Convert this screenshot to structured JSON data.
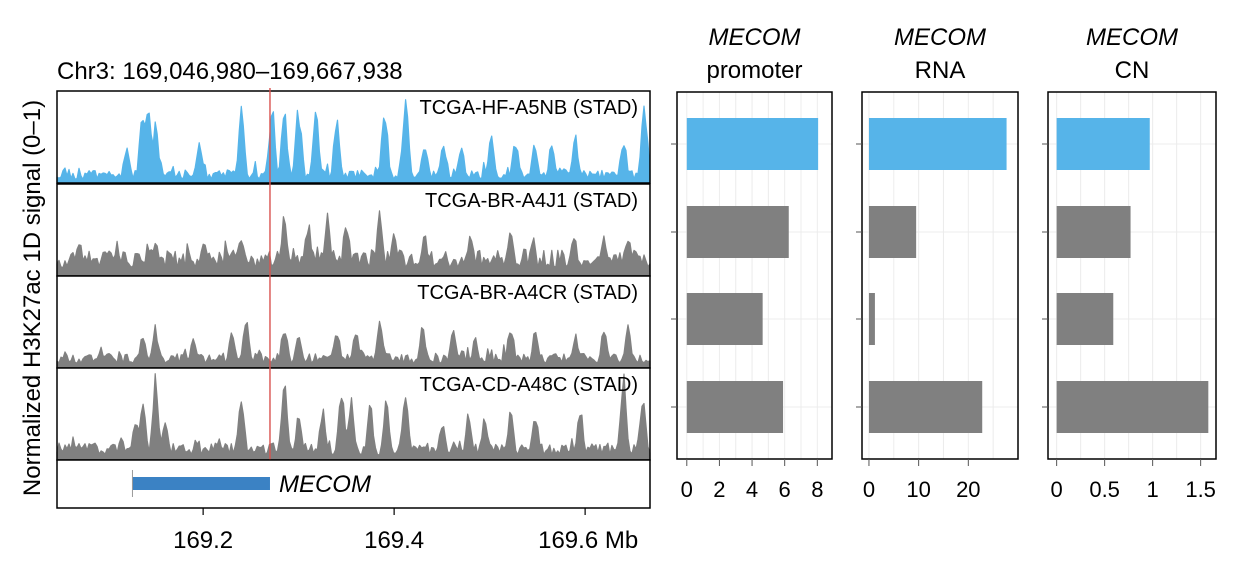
{
  "chart_data": [
    {
      "type": "area",
      "title": "Chr3: 169,046,980–169,667,938",
      "ylabel": "Normalized H3K27ac 1D signal (0–1)",
      "x_unit": "Mb",
      "xlim": [
        169.04698,
        169.667938
      ],
      "ylim": [
        0,
        1
      ],
      "x_ticks": [
        169.2,
        169.4,
        169.6
      ],
      "x_tick_labels": [
        "169.2",
        "169.4",
        "169.6 Mb"
      ],
      "marker_line_x": 169.27,
      "tracks": [
        {
          "name": "TCGA-HF-A5NB (STAD)",
          "color": "#56b4e9",
          "seed": 11,
          "base": 0.12,
          "peaks": [
            [
              169.137,
              0.95
            ],
            [
              169.143,
              0.9
            ],
            [
              169.15,
              0.75
            ],
            [
              169.12,
              0.5
            ],
            [
              169.196,
              0.55
            ],
            [
              169.24,
              0.88
            ],
            [
              169.272,
              0.92
            ],
            [
              169.285,
              0.9
            ],
            [
              169.3,
              0.95
            ],
            [
              169.318,
              0.92
            ],
            [
              169.34,
              0.8
            ],
            [
              169.39,
              0.98
            ],
            [
              169.412,
              0.95
            ],
            [
              169.432,
              0.55
            ],
            [
              169.452,
              0.5
            ],
            [
              169.47,
              0.48
            ],
            [
              169.502,
              0.55
            ],
            [
              169.527,
              0.5
            ],
            [
              169.547,
              0.45
            ],
            [
              169.565,
              0.48
            ],
            [
              169.59,
              0.55
            ],
            [
              169.64,
              0.55
            ],
            [
              169.662,
              1.0
            ]
          ]
        },
        {
          "name": "TCGA-BR-A4J1 (STAD)",
          "color": "#808080",
          "seed": 23,
          "base": 0.25,
          "peaks": [
            [
              169.07,
              0.45
            ],
            [
              169.11,
              0.4
            ],
            [
              169.15,
              0.45
            ],
            [
              169.2,
              0.45
            ],
            [
              169.24,
              0.55
            ],
            [
              169.285,
              0.82
            ],
            [
              169.31,
              0.7
            ],
            [
              169.33,
              0.72
            ],
            [
              169.35,
              0.72
            ],
            [
              169.385,
              0.75
            ],
            [
              169.4,
              0.5
            ],
            [
              169.432,
              0.55
            ],
            [
              169.48,
              0.52
            ],
            [
              169.522,
              0.55
            ],
            [
              169.545,
              0.5
            ],
            [
              169.588,
              0.55
            ],
            [
              169.62,
              0.5
            ],
            [
              169.645,
              0.52
            ]
          ]
        },
        {
          "name": "TCGA-BR-A4CR (STAD)",
          "color": "#808080",
          "seed": 37,
          "base": 0.14,
          "peaks": [
            [
              169.137,
              0.4
            ],
            [
              169.15,
              0.5
            ],
            [
              169.19,
              0.35
            ],
            [
              169.23,
              0.45
            ],
            [
              169.245,
              0.58
            ],
            [
              169.285,
              0.55
            ],
            [
              169.3,
              0.45
            ],
            [
              169.34,
              0.45
            ],
            [
              169.36,
              0.5
            ],
            [
              169.385,
              0.58
            ],
            [
              169.43,
              0.5
            ],
            [
              169.462,
              0.5
            ],
            [
              169.485,
              0.35
            ],
            [
              169.522,
              0.55
            ],
            [
              169.548,
              0.45
            ],
            [
              169.59,
              0.4
            ],
            [
              169.62,
              0.55
            ],
            [
              169.645,
              0.5
            ]
          ]
        },
        {
          "name": "TCGA-CD-A48C (STAD)",
          "color": "#808080",
          "seed": 51,
          "base": 0.16,
          "peaks": [
            [
              169.07,
              0.2
            ],
            [
              169.13,
              0.55
            ],
            [
              169.137,
              0.72
            ],
            [
              169.15,
              1.0
            ],
            [
              169.16,
              0.5
            ],
            [
              169.24,
              0.85
            ],
            [
              169.285,
              0.95
            ],
            [
              169.3,
              0.55
            ],
            [
              169.325,
              0.65
            ],
            [
              169.345,
              0.85
            ],
            [
              169.355,
              0.78
            ],
            [
              169.375,
              0.65
            ],
            [
              169.392,
              0.75
            ],
            [
              169.412,
              0.88
            ],
            [
              169.45,
              0.5
            ],
            [
              169.478,
              0.55
            ],
            [
              169.495,
              0.55
            ],
            [
              169.522,
              0.62
            ],
            [
              169.548,
              0.6
            ],
            [
              169.595,
              0.62
            ],
            [
              169.64,
              1.0
            ],
            [
              169.66,
              0.8
            ]
          ]
        }
      ],
      "gene": {
        "name": "MECOM",
        "start": 169.126,
        "end": 169.27,
        "color": "#3b82c4"
      }
    },
    {
      "type": "bar",
      "orientation": "horizontal",
      "title_gene": "MECOM",
      "title_line2": "promoter",
      "categories": [
        "TCGA-HF-A5NB (STAD)",
        "TCGA-BR-A4J1 (STAD)",
        "TCGA-BR-A4CR (STAD)",
        "TCGA-CD-A48C (STAD)"
      ],
      "values": [
        8.05,
        6.25,
        4.65,
        5.9
      ],
      "xlim": [
        -0.6,
        8.9
      ],
      "x_ticks": [
        0,
        2,
        4,
        6,
        8
      ],
      "x_tick_labels": [
        "0",
        "2",
        "4",
        "6",
        "8"
      ],
      "grid": true
    },
    {
      "type": "bar",
      "orientation": "horizontal",
      "title_gene": "MECOM",
      "title_line2": "RNA",
      "categories": [
        "TCGA-HF-A5NB (STAD)",
        "TCGA-BR-A4J1 (STAD)",
        "TCGA-BR-A4CR (STAD)",
        "TCGA-CD-A48C (STAD)"
      ],
      "values": [
        27.7,
        9.5,
        1.2,
        22.8
      ],
      "xlim": [
        -1.4,
        30.0
      ],
      "x_ticks": [
        0,
        10,
        20
      ],
      "x_tick_labels": [
        "0",
        "10",
        "20"
      ],
      "grid": true
    },
    {
      "type": "bar",
      "orientation": "horizontal",
      "title_gene": "MECOM",
      "title_line2": "CN",
      "categories": [
        "TCGA-HF-A5NB (STAD)",
        "TCGA-BR-A4J1 (STAD)",
        "TCGA-BR-A4CR (STAD)",
        "TCGA-CD-A48C (STAD)"
      ],
      "values": [
        0.97,
        0.77,
        0.59,
        1.58
      ],
      "xlim": [
        -0.09,
        1.66
      ],
      "x_ticks": [
        0,
        0.5,
        1,
        1.5
      ],
      "x_tick_labels": [
        "0",
        "0.5",
        "1",
        "1.5"
      ],
      "grid": true
    }
  ],
  "colors": {
    "highlight": "#56b4e9",
    "other": "#808080",
    "marker_line": "#d9534f",
    "gene": "#3b82c4"
  }
}
